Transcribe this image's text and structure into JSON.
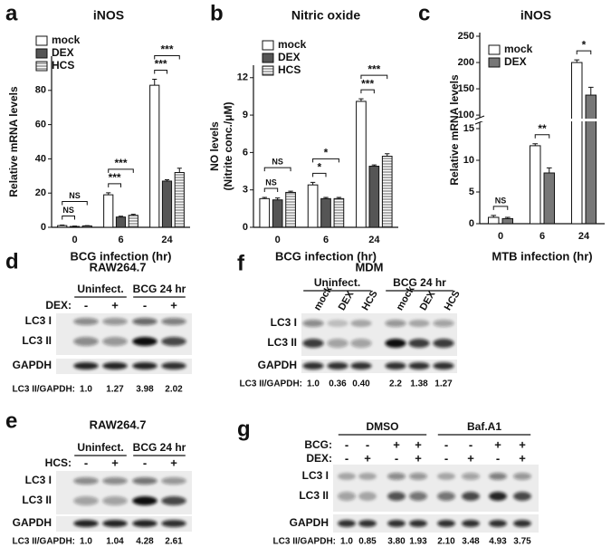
{
  "chart_data": [
    {
      "type": "bar",
      "panel_label": "a",
      "title": "iNOS",
      "xlabel": "BCG infection (hr)",
      "ylabel": [
        "Relative mRNA levels"
      ],
      "categories": [
        "0",
        "6",
        "24"
      ],
      "series": [
        {
          "name": "mock",
          "color": "#ffffff",
          "values": [
            1,
            19,
            83
          ],
          "errors": [
            0.3,
            1.2,
            3.5
          ]
        },
        {
          "name": "DEX",
          "color": "#555555",
          "values": [
            0.5,
            6,
            27
          ],
          "errors": [
            0.2,
            0.5,
            0.8
          ]
        },
        {
          "name": "HCS",
          "color": "#8a8a8a",
          "hatch": "horizontal",
          "values": [
            0.8,
            7,
            32
          ],
          "errors": [
            0.2,
            0.6,
            2.5
          ]
        }
      ],
      "ylim": [
        0,
        100
      ],
      "yticks": [
        0,
        20,
        40,
        60,
        80
      ],
      "legend": "top-left",
      "significance": [
        {
          "category": "0",
          "pair": [
            "mock",
            "DEX"
          ],
          "label": "NS"
        },
        {
          "category": "0",
          "pair": [
            "mock",
            "HCS"
          ],
          "label": "NS"
        },
        {
          "category": "6",
          "pair": [
            "mock",
            "DEX"
          ],
          "label": "***"
        },
        {
          "category": "6",
          "pair": [
            "mock",
            "HCS"
          ],
          "label": "***"
        },
        {
          "category": "24",
          "pair": [
            "mock",
            "DEX"
          ],
          "label": "***"
        },
        {
          "category": "24",
          "pair": [
            "mock",
            "HCS"
          ],
          "label": "***"
        }
      ]
    },
    {
      "type": "bar",
      "panel_label": "b",
      "title": "Nitric oxide",
      "xlabel": "BCG infection (hr)",
      "ylabel": [
        "NO levels",
        "(Nitrite conc./μM)"
      ],
      "categories": [
        "0",
        "6",
        "24"
      ],
      "series": [
        {
          "name": "mock",
          "color": "#ffffff",
          "values": [
            2.3,
            3.4,
            10.1
          ],
          "errors": [
            0.1,
            0.2,
            0.2
          ]
        },
        {
          "name": "DEX",
          "color": "#555555",
          "values": [
            2.2,
            2.3,
            4.9
          ],
          "errors": [
            0.15,
            0.1,
            0.1
          ]
        },
        {
          "name": "HCS",
          "color": "#8a8a8a",
          "hatch": "horizontal",
          "values": [
            2.8,
            2.3,
            5.7
          ],
          "errors": [
            0.1,
            0.1,
            0.2
          ]
        }
      ],
      "ylim": [
        0,
        13
      ],
      "yticks": [
        0,
        3,
        6,
        9,
        12
      ],
      "legend": "top-left",
      "significance": [
        {
          "category": "0",
          "pair": [
            "mock",
            "DEX"
          ],
          "label": "NS"
        },
        {
          "category": "0",
          "pair": [
            "mock",
            "HCS"
          ],
          "label": "NS"
        },
        {
          "category": "6",
          "pair": [
            "mock",
            "DEX"
          ],
          "label": "*"
        },
        {
          "category": "6",
          "pair": [
            "mock",
            "HCS"
          ],
          "label": "*"
        },
        {
          "category": "24",
          "pair": [
            "mock",
            "DEX"
          ],
          "label": "***"
        },
        {
          "category": "24",
          "pair": [
            "mock",
            "HCS"
          ],
          "label": "***"
        }
      ]
    },
    {
      "type": "bar",
      "panel_label": "c",
      "title": "iNOS",
      "xlabel": "MTB infection (hr)",
      "ylabel": [
        "Relative mRNA levels"
      ],
      "categories": [
        "0",
        "6",
        "24"
      ],
      "series": [
        {
          "name": "mock",
          "color": "#ffffff",
          "values": [
            1,
            12.3,
            200
          ],
          "errors": [
            0.3,
            0.3,
            5
          ]
        },
        {
          "name": "DEX",
          "color": "#777777",
          "values": [
            0.8,
            8,
            138
          ],
          "errors": [
            0.2,
            0.8,
            15
          ]
        }
      ],
      "ylim": [
        0,
        250
      ],
      "yticks": [
        0,
        5,
        10,
        15,
        100,
        150,
        200,
        250
      ],
      "ybreak": [
        16,
        95
      ],
      "legend": "top-left",
      "significance": [
        {
          "category": "0",
          "pair": [
            "mock",
            "DEX"
          ],
          "label": "NS"
        },
        {
          "category": "6",
          "pair": [
            "mock",
            "DEX"
          ],
          "label": "**"
        },
        {
          "category": "24",
          "pair": [
            "mock",
            "DEX"
          ],
          "label": "*"
        }
      ]
    }
  ],
  "blots": [
    {
      "panel_label": "d",
      "title": "RAW264.7",
      "groups": [
        "Uninfect.",
        "BCG 24 hr"
      ],
      "conditions": [
        {
          "label": "DEX:",
          "signs": [
            "-",
            "+",
            "-",
            "+"
          ]
        }
      ],
      "bands": [
        "LC3 I",
        "LC3 II",
        "GAPDH"
      ],
      "quant_label": "LC3 II/GAPDH:",
      "quant": [
        "1.0",
        "1.27",
        "3.98",
        "2.02"
      ]
    },
    {
      "panel_label": "e",
      "title": "RAW264.7",
      "groups": [
        "Uninfect.",
        "BCG 24 hr"
      ],
      "conditions": [
        {
          "label": "HCS:",
          "signs": [
            "-",
            "+",
            "-",
            "+"
          ]
        }
      ],
      "bands": [
        "LC3 I",
        "LC3 II",
        "GAPDH"
      ],
      "quant_label": "LC3 II/GAPDH:",
      "quant": [
        "1.0",
        "1.04",
        "4.28",
        "2.61"
      ]
    },
    {
      "panel_label": "f",
      "title": "MDM",
      "groups": [
        "Uninfect.",
        "BCG 24 hr"
      ],
      "lanes": [
        "mock",
        "DEX",
        "HCS",
        "mock",
        "DEX",
        "HCS"
      ],
      "bands": [
        "LC3 I",
        "LC3 II",
        "GAPDH"
      ],
      "quant_label": "LC3 II/GAPDH:",
      "quant": [
        "1.0",
        "0.36",
        "0.40",
        "2.2",
        "1.38",
        "1.27"
      ]
    },
    {
      "panel_label": "g",
      "groups": [
        "DMSO",
        "Baf.A1"
      ],
      "conditions": [
        {
          "label": "BCG:",
          "signs": [
            "-",
            "-",
            "+",
            "+",
            "-",
            "-",
            "+",
            "+"
          ]
        },
        {
          "label": "DEX:",
          "signs": [
            "-",
            "+",
            "-",
            "+",
            "-",
            "+",
            "-",
            "+"
          ]
        }
      ],
      "bands": [
        "LC3 I",
        "LC3 II",
        "GAPDH"
      ],
      "quant_label": "LC3 II/GAPDH:",
      "quant": [
        "1.0",
        "0.85",
        "3.80",
        "1.93",
        "2.10",
        "3.48",
        "4.93",
        "3.75"
      ]
    }
  ]
}
